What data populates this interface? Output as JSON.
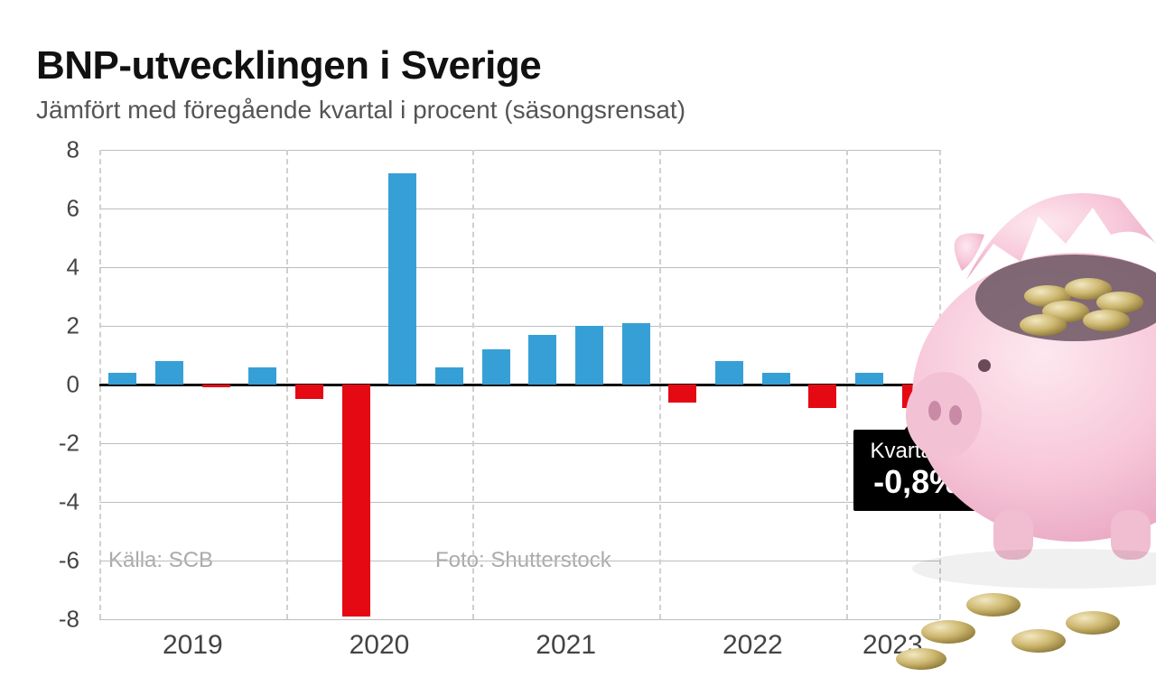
{
  "header": {
    "title": "BNP-utvecklingen i Sverige",
    "subtitle": "Jämfört med föregående kvartal i procent (säsongsrensat)"
  },
  "credits": {
    "source": "Källa: SCB",
    "photo": "Foto: Shutterstock"
  },
  "chart": {
    "type": "bar",
    "ylim": [
      -8,
      8
    ],
    "ytick_step": 2,
    "yticks": [
      -8,
      -6,
      -4,
      -2,
      0,
      2,
      4,
      6,
      8
    ],
    "grid_color": "#bdbdbd",
    "vline_color": "#d0d0d0",
    "zero_line_color": "#111111",
    "background_color": "#ffffff",
    "bar_color_positive": "#36a0d6",
    "bar_color_negative": "#e50914",
    "bar_width_ratio": 0.6,
    "axis_fontsize": 26,
    "xlabel_fontsize": 30,
    "year_boundaries": [
      0,
      4,
      8,
      12,
      16,
      18
    ],
    "year_labels": [
      "2019",
      "2020",
      "2021",
      "2022",
      "2023"
    ],
    "values": [
      0.4,
      0.8,
      -0.1,
      0.6,
      -0.5,
      -7.9,
      7.2,
      0.6,
      1.2,
      1.7,
      2.0,
      2.1,
      -0.6,
      0.8,
      0.4,
      -0.8,
      0.4,
      -0.8
    ]
  },
  "callout": {
    "line1": "Kvartal 2:",
    "line2": "-0,8%",
    "target_index": 17,
    "bg": "#000000",
    "fg": "#ffffff",
    "line1_fontsize": 24,
    "line2_fontsize": 36
  }
}
